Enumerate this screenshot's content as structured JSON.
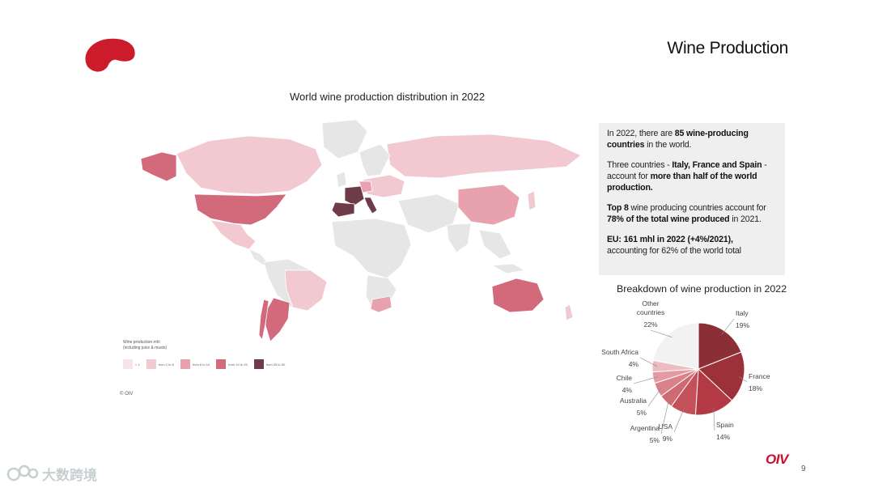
{
  "slide": {
    "title": "Wine Production",
    "page_number": "9",
    "footer_logo": "OIV",
    "watermark": "大数跨境"
  },
  "map": {
    "title": "World wine production distribution in 2022",
    "legend_title": "Wine production mhl",
    "legend_subtitle": "(including juice & musts)",
    "legend": [
      {
        "label": "< 1",
        "color": "#f7e4e7"
      },
      {
        "label": "from 1 to 6",
        "color": "#f2c9d0"
      },
      {
        "label": "from 6 to 10",
        "color": "#e8a2ae"
      },
      {
        "label": "from 10 to 25",
        "color": "#d26a7c"
      },
      {
        "label": "from 25 to 50",
        "color": "#6e3b49"
      }
    ],
    "colors": {
      "ocean": "#ffffff",
      "no_data": "#e6e6e6"
    },
    "copyright": "© OIV"
  },
  "info": {
    "p1_a": "In 2022, there are ",
    "p1_b": "85 wine-producing countries",
    "p1_c": " in the world.",
    "p2_a": "Three countries - ",
    "p2_b": "Italy, France and Spain",
    "p2_c": " - account for ",
    "p2_d": "more than half of the world production.",
    "p3_a": "Top 8",
    "p3_b": " wine producing countries account for ",
    "p3_c": "78% of the total wine produced",
    "p3_d": " in 2021.",
    "p4_a": "EU: 161 mhl in 2022 (+4%/2021),",
    "p4_b": "accounting for 62% of the world total"
  },
  "chart_data": {
    "type": "pie",
    "title": "Breakdown of wine production in 2022",
    "slices": [
      {
        "name": "Italy",
        "value": 19,
        "label": "19%",
        "color": "#8b2e36"
      },
      {
        "name": "France",
        "value": 18,
        "label": "18%",
        "color": "#9c3139"
      },
      {
        "name": "Spain",
        "value": 14,
        "label": "14%",
        "color": "#b33a44"
      },
      {
        "name": "USA",
        "value": 9,
        "label": "9%",
        "color": "#c4505a"
      },
      {
        "name": "Argentina",
        "value": 5,
        "label": "5%",
        "color": "#d06a72"
      },
      {
        "name": "Australia",
        "value": 5,
        "label": "5%",
        "color": "#da8189"
      },
      {
        "name": "Chile",
        "value": 4,
        "label": "4%",
        "color": "#e49aa1"
      },
      {
        "name": "South Africa",
        "value": 4,
        "label": "4%",
        "color": "#edbcc0"
      },
      {
        "name": "Other countries",
        "value": 22,
        "label": "22%",
        "color": "#f2f2f2"
      }
    ]
  }
}
